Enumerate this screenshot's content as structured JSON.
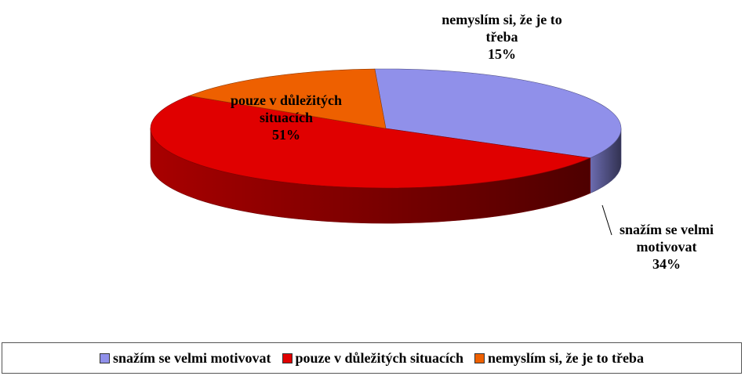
{
  "chart_data": {
    "type": "pie",
    "categories": [
      "snažím se velmi motivovat",
      "pouze v důležitých situacích",
      "nemyslím si, že je to třeba"
    ],
    "values": [
      34,
      51,
      15
    ],
    "value_labels": [
      "34%",
      "51%",
      "15%"
    ],
    "colors": [
      "#9090ea",
      "#e00000",
      "#ee6000"
    ],
    "legend": "bottom"
  }
}
